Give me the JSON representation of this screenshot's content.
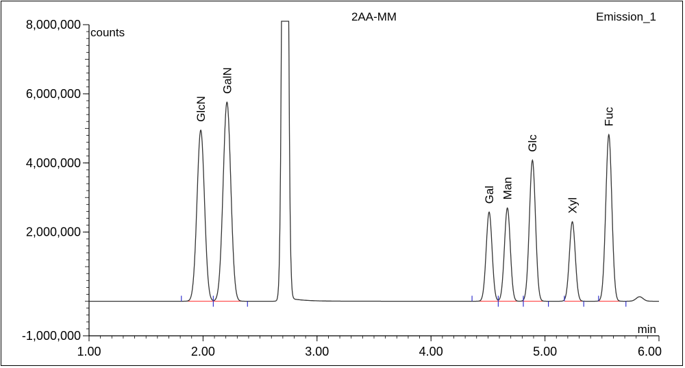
{
  "chart_data": {
    "type": "line",
    "title": "2AA-MM",
    "channel": "Emission_1",
    "xlabel": "min",
    "ylabel": "counts",
    "xlim": [
      1.0,
      6.0
    ],
    "ylim": [
      -1000000,
      8000000
    ],
    "x_ticks": [
      1.0,
      2.0,
      3.0,
      4.0,
      5.0,
      6.0
    ],
    "x_tick_labels": [
      "1.00",
      "2.00",
      "3.00",
      "4.00",
      "5.00",
      "6.00"
    ],
    "y_ticks": [
      -1000000,
      2000000,
      4000000,
      6000000,
      8000000
    ],
    "y_tick_labels": [
      "-1,000,000",
      "2,000,000",
      "4,000,000",
      "6,000,000",
      "8,000,000"
    ],
    "baseline": 0,
    "peaks": [
      {
        "label": "GlcN",
        "rt": 1.98,
        "height": 4950000,
        "width": 0.032
      },
      {
        "label": "GalN",
        "rt": 2.21,
        "height": 5760000,
        "width": 0.033
      },
      {
        "label": "",
        "rt": 2.72,
        "height": 30000000,
        "width": 0.02,
        "off_scale": true
      },
      {
        "label": "Gal",
        "rt": 4.51,
        "height": 2580000,
        "width": 0.025
      },
      {
        "label": "Man",
        "rt": 4.67,
        "height": 2700000,
        "width": 0.025
      },
      {
        "label": "Glc",
        "rt": 4.89,
        "height": 4080000,
        "width": 0.026
      },
      {
        "label": "Xyl",
        "rt": 5.24,
        "height": 2300000,
        "width": 0.025
      },
      {
        "label": "Fuc",
        "rt": 5.56,
        "height": 4820000,
        "width": 0.026
      },
      {
        "label": "",
        "rt": 5.83,
        "height": 130000,
        "width": 0.03
      }
    ],
    "integration_segments": [
      [
        1.81,
        2.09
      ],
      [
        2.09,
        2.39
      ],
      [
        4.36,
        4.59
      ],
      [
        4.59,
        4.81
      ],
      [
        4.81,
        5.03
      ],
      [
        5.17,
        5.34
      ],
      [
        5.47,
        5.71
      ]
    ],
    "colors": {
      "trace": "#333333",
      "baseline_segments": "#ff3333",
      "markers": "#3333cc"
    }
  }
}
